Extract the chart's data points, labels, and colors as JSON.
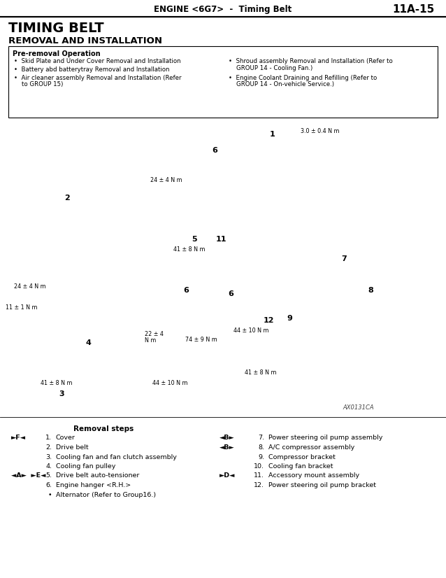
{
  "header_text": "ENGINE <6G7>  -  Timing Belt",
  "header_page": "11A-15",
  "title": "TIMING BELT",
  "subtitle": "REMOVAL AND INSTALLATION",
  "pre_removal_title": "Pre-removal Operation",
  "pre_removal_left": [
    "Skid Plate and Under Cover Removal and Installation",
    "Battery abd batterytray Removal and Installation",
    "Air cleaner assembly Removal and Installation (Refer",
    "to GROUP 15)"
  ],
  "pre_removal_right": [
    "Shroud assembly Removal and Installation (Refer to",
    "GROUP 14 - Cooling Fan.)",
    "Engine Coolant Draining and Refilling (Refer to",
    "GROUP 14 - On-vehicle Service.)"
  ],
  "diagram_label": "AX0131CA",
  "torque_labels": [
    [
      430,
      183,
      "3.0 ± 0.4 N m"
    ],
    [
      215,
      253,
      "24 ± 4 N m"
    ],
    [
      248,
      352,
      "41 ± 8 N m"
    ],
    [
      20,
      405,
      "24 ± 4 N m"
    ],
    [
      8,
      435,
      "11 ± 1 N m"
    ],
    [
      58,
      543,
      "41 ± 8 N m"
    ],
    [
      207,
      473,
      "22 ± 4"
    ],
    [
      207,
      482,
      "N m"
    ],
    [
      265,
      481,
      "74 ± 9 N m"
    ],
    [
      334,
      468,
      "44 ± 10 N m"
    ],
    [
      350,
      528,
      "41 ± 8 N m"
    ],
    [
      218,
      543,
      "44 ± 10 N m"
    ]
  ],
  "part_nums": [
    [
      390,
      192,
      "1"
    ],
    [
      96,
      283,
      "2"
    ],
    [
      278,
      342,
      "5"
    ],
    [
      316,
      342,
      "11"
    ],
    [
      266,
      415,
      "6"
    ],
    [
      126,
      490,
      "4"
    ],
    [
      88,
      563,
      "3"
    ],
    [
      330,
      420,
      "6"
    ],
    [
      384,
      458,
      "12"
    ],
    [
      414,
      455,
      "9"
    ],
    [
      492,
      370,
      "7"
    ],
    [
      530,
      415,
      "8"
    ],
    [
      307,
      215,
      "6"
    ]
  ],
  "removal_steps_title": "Removal steps",
  "left_steps": [
    {
      "prefix": "►F◄",
      "indent": true,
      "num": "1.",
      "text": "Cover"
    },
    {
      "prefix": "",
      "indent": true,
      "num": "2.",
      "text": "Drive belt"
    },
    {
      "prefix": "",
      "indent": true,
      "num": "3.",
      "text": "Cooling fan and fan clutch assembly"
    },
    {
      "prefix": "",
      "indent": true,
      "num": "4.",
      "text": "Cooling fan pulley"
    },
    {
      "prefix": "◄A►  ►E◄",
      "indent": true,
      "num": "5.",
      "text": "Drive belt auto-tensioner"
    },
    {
      "prefix": "",
      "indent": true,
      "num": "6.",
      "text": "Engine hanger <R.H.>"
    },
    {
      "prefix": "",
      "indent": true,
      "num": "•",
      "text": "Alternator (Refer to Group16.)"
    }
  ],
  "right_steps": [
    {
      "prefix": "◄B►",
      "num": "7.",
      "text": "Power steering oil pump assembly"
    },
    {
      "prefix": "◄B►",
      "num": "8.",
      "text": "A/C compressor assembly"
    },
    {
      "prefix": "",
      "num": "9.",
      "text": "Compressor bracket"
    },
    {
      "prefix": "",
      "num": "10.",
      "text": "Cooling fan bracket"
    },
    {
      "prefix": "►D◄",
      "num": "11.",
      "text": "Accessory mount assembly"
    },
    {
      "prefix": "",
      "num": "12.",
      "text": "Power steering oil pump bracket"
    }
  ],
  "bg_color": "#ffffff",
  "text_color": "#000000",
  "border_color": "#000000",
  "fig_w": 6.38,
  "fig_h": 8.26,
  "dpi": 100
}
